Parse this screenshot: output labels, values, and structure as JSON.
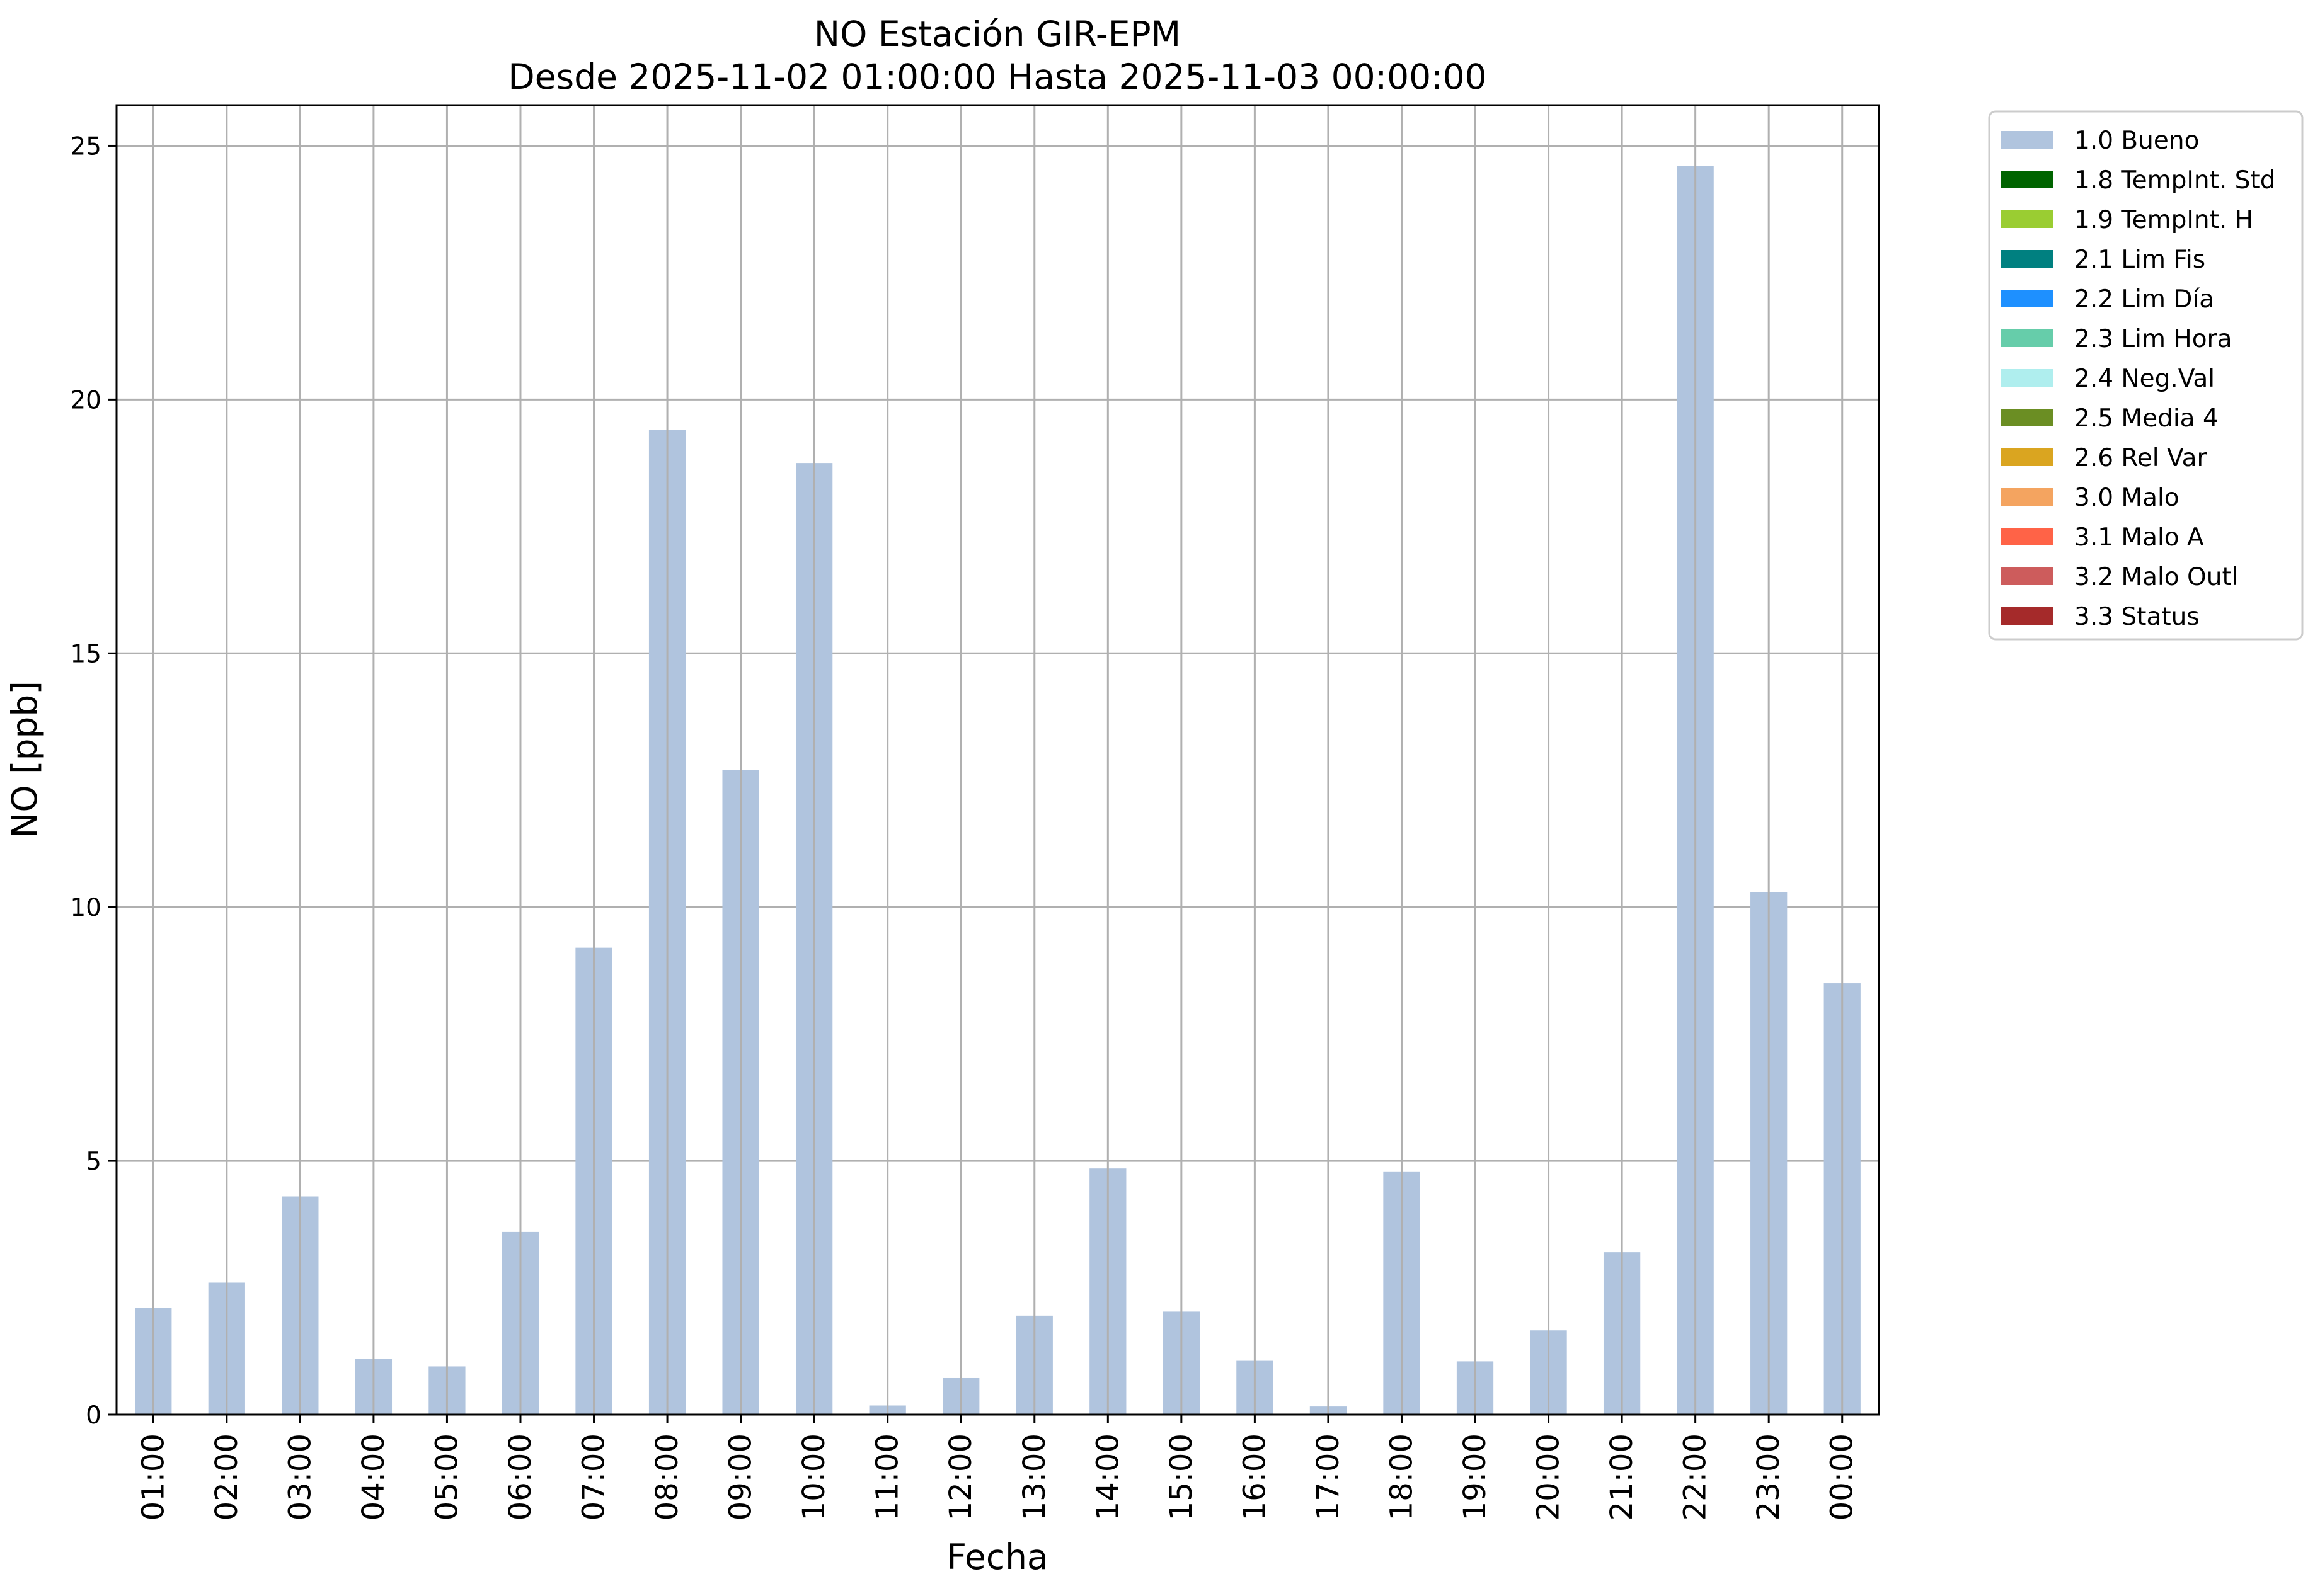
{
  "chart_data": {
    "type": "bar",
    "title": "NO Estación GIR-EPM",
    "subtitle": "Desde 2025-11-02 01:00:00 Hasta 2025-11-03 00:00:00",
    "xlabel": "Fecha",
    "ylabel": "NO [ppb]",
    "ylim": [
      0,
      25.8
    ],
    "yticks": [
      0,
      5,
      10,
      15,
      20,
      25
    ],
    "grid": true,
    "legend_position": "outside-top-right",
    "categories": [
      "01:00",
      "02:00",
      "03:00",
      "04:00",
      "05:00",
      "06:00",
      "07:00",
      "08:00",
      "09:00",
      "10:00",
      "11:00",
      "12:00",
      "13:00",
      "14:00",
      "15:00",
      "16:00",
      "17:00",
      "18:00",
      "19:00",
      "20:00",
      "21:00",
      "22:00",
      "23:00",
      "00:00"
    ],
    "series": [
      {
        "name": "1.0 Bueno",
        "color": "#b0c4de",
        "values": [
          2.1,
          2.6,
          4.3,
          1.1,
          0.95,
          3.6,
          9.2,
          19.4,
          12.7,
          18.75,
          0.18,
          0.72,
          1.95,
          4.85,
          2.03,
          1.06,
          0.16,
          4.78,
          1.05,
          1.66,
          3.2,
          24.6,
          10.3,
          8.5
        ]
      }
    ],
    "legend": [
      {
        "label": "1.0 Bueno",
        "color": "#b0c4de"
      },
      {
        "label": "1.8 TempInt. Std",
        "color": "#006400"
      },
      {
        "label": "1.9 TempInt. H",
        "color": "#9acd32"
      },
      {
        "label": "2.1 Lim Fis",
        "color": "#008080"
      },
      {
        "label": "2.2 Lim Día",
        "color": "#1e90ff"
      },
      {
        "label": "2.3 Lim Hora",
        "color": "#66cdaa"
      },
      {
        "label": "2.4 Neg.Val",
        "color": "#afeeee"
      },
      {
        "label": "2.5 Media 4",
        "color": "#6b8e23"
      },
      {
        "label": "2.6 Rel Var",
        "color": "#daa520"
      },
      {
        "label": "3.0 Malo",
        "color": "#f4a460"
      },
      {
        "label": "3.1 Malo A",
        "color": "#ff6347"
      },
      {
        "label": "3.2 Malo Outl",
        "color": "#cd5c5c"
      },
      {
        "label": "3.3 Status",
        "color": "#a52a2a"
      }
    ]
  }
}
